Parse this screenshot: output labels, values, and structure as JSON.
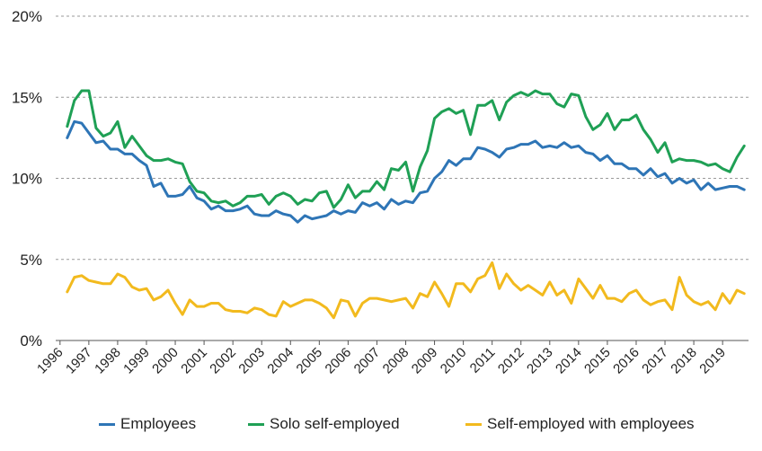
{
  "chart_data": {
    "type": "line",
    "ylim": [
      0,
      20
    ],
    "y_ticks": [
      "0%",
      "5%",
      "10%",
      "15%",
      "20%"
    ],
    "y_tick_values": [
      0,
      5,
      10,
      15,
      20
    ],
    "x_tick_labels": [
      "1996",
      "1997",
      "1998",
      "1999",
      "2000",
      "2001",
      "2002",
      "2003",
      "2004",
      "2005",
      "2006",
      "2007",
      "2008",
      "2009",
      "2010",
      "2011",
      "2012",
      "2013",
      "2014",
      "2015",
      "2016",
      "2017",
      "2018",
      "2019"
    ],
    "x_tick_values": [
      1996,
      1997,
      1998,
      1999,
      2000,
      2001,
      2002,
      2003,
      2004,
      2005,
      2006,
      2007,
      2008,
      2009,
      2010,
      2011,
      2012,
      2013,
      2014,
      2015,
      2016,
      2017,
      2018,
      2019
    ],
    "xlim": [
      1995.85,
      2019.9
    ],
    "grid": "horizontal-dashed",
    "legend_position": "bottom",
    "x": [
      1996.25,
      1996.5,
      1996.75,
      1997.0,
      1997.25,
      1997.5,
      1997.75,
      1998.0,
      1998.25,
      1998.5,
      1998.75,
      1999.0,
      1999.25,
      1999.5,
      1999.75,
      2000.0,
      2000.25,
      2000.5,
      2000.75,
      2001.0,
      2001.25,
      2001.5,
      2001.75,
      2002.0,
      2002.25,
      2002.5,
      2002.75,
      2003.0,
      2003.25,
      2003.5,
      2003.75,
      2004.0,
      2004.25,
      2004.5,
      2004.75,
      2005.0,
      2005.25,
      2005.5,
      2005.75,
      2006.0,
      2006.25,
      2006.5,
      2006.75,
      2007.0,
      2007.25,
      2007.5,
      2007.75,
      2008.0,
      2008.25,
      2008.5,
      2008.75,
      2009.0,
      2009.25,
      2009.5,
      2009.75,
      2010.0,
      2010.25,
      2010.5,
      2010.75,
      2011.0,
      2011.25,
      2011.5,
      2011.75,
      2012.0,
      2012.25,
      2012.5,
      2012.75,
      2013.0,
      2013.25,
      2013.5,
      2013.75,
      2014.0,
      2014.25,
      2014.5,
      2014.75,
      2015.0,
      2015.25,
      2015.5,
      2015.75,
      2016.0,
      2016.25,
      2016.5,
      2016.75,
      2017.0,
      2017.25,
      2017.5,
      2017.75,
      2018.0,
      2018.25,
      2018.5,
      2018.75,
      2019.0,
      2019.25,
      2019.5,
      2019.75
    ],
    "series": [
      {
        "name": "Employees",
        "color": "#2E75B6",
        "values": [
          12.5,
          13.5,
          13.4,
          12.8,
          12.2,
          12.3,
          11.8,
          11.8,
          11.5,
          11.5,
          11.1,
          10.8,
          9.5,
          9.7,
          8.9,
          8.9,
          9.0,
          9.5,
          8.8,
          8.6,
          8.1,
          8.3,
          8.0,
          8.0,
          8.1,
          8.3,
          7.8,
          7.7,
          7.7,
          8.0,
          7.8,
          7.7,
          7.3,
          7.7,
          7.5,
          7.6,
          7.7,
          8.0,
          7.8,
          8.0,
          7.9,
          8.5,
          8.3,
          8.5,
          8.1,
          8.7,
          8.4,
          8.6,
          8.5,
          9.1,
          9.2,
          10.0,
          10.4,
          11.1,
          10.8,
          11.2,
          11.2,
          11.9,
          11.8,
          11.6,
          11.3,
          11.8,
          11.9,
          12.1,
          12.1,
          12.3,
          11.9,
          12.0,
          11.9,
          12.2,
          11.9,
          12.0,
          11.6,
          11.5,
          11.1,
          11.4,
          10.9,
          10.9,
          10.6,
          10.6,
          10.2,
          10.6,
          10.1,
          10.3,
          9.7,
          10.0,
          9.7,
          9.9,
          9.3,
          9.7,
          9.3,
          9.4,
          9.5,
          9.5,
          9.3
        ]
      },
      {
        "name": "Solo self-employed",
        "color": "#1FA055",
        "values": [
          13.2,
          14.8,
          15.4,
          15.4,
          13.1,
          12.6,
          12.8,
          13.5,
          11.9,
          12.6,
          12.0,
          11.4,
          11.1,
          11.1,
          11.2,
          11.0,
          10.9,
          9.8,
          9.2,
          9.1,
          8.6,
          8.5,
          8.6,
          8.3,
          8.5,
          8.9,
          8.9,
          9.0,
          8.4,
          8.9,
          9.1,
          8.9,
          8.4,
          8.7,
          8.6,
          9.1,
          9.2,
          8.2,
          8.7,
          9.6,
          8.8,
          9.2,
          9.2,
          9.8,
          9.3,
          10.6,
          10.5,
          11.0,
          9.2,
          10.7,
          11.7,
          13.7,
          14.1,
          14.3,
          14.0,
          14.2,
          12.7,
          14.5,
          14.5,
          14.8,
          13.6,
          14.7,
          15.1,
          15.3,
          15.1,
          15.4,
          15.2,
          15.2,
          14.6,
          14.4,
          15.2,
          15.1,
          13.8,
          13.0,
          13.3,
          14.0,
          13.0,
          13.6,
          13.6,
          13.9,
          13.0,
          12.4,
          11.6,
          12.2,
          11.0,
          11.2,
          11.1,
          11.1,
          11.0,
          10.8,
          10.9,
          10.6,
          10.4,
          11.3,
          12.0
        ]
      },
      {
        "name": "Self-employed with employees",
        "color": "#F2BA1E",
        "values": [
          3.0,
          3.9,
          4.0,
          3.7,
          3.6,
          3.5,
          3.5,
          4.1,
          3.9,
          3.3,
          3.1,
          3.2,
          2.5,
          2.7,
          3.1,
          2.3,
          1.6,
          2.5,
          2.1,
          2.1,
          2.3,
          2.3,
          1.9,
          1.8,
          1.8,
          1.7,
          2.0,
          1.9,
          1.6,
          1.5,
          2.4,
          2.1,
          2.3,
          2.5,
          2.5,
          2.3,
          2.0,
          1.4,
          2.5,
          2.4,
          1.5,
          2.3,
          2.6,
          2.6,
          2.5,
          2.4,
          2.5,
          2.6,
          2.0,
          2.9,
          2.7,
          3.6,
          2.9,
          2.1,
          3.5,
          3.5,
          3.0,
          3.8,
          4.0,
          4.8,
          3.2,
          4.1,
          3.5,
          3.1,
          3.4,
          3.1,
          2.8,
          3.6,
          2.8,
          3.1,
          2.3,
          3.8,
          3.2,
          2.6,
          3.4,
          2.6,
          2.6,
          2.4,
          2.9,
          3.1,
          2.5,
          2.2,
          2.4,
          2.5,
          1.9,
          3.9,
          2.8,
          2.4,
          2.2,
          2.4,
          1.9,
          2.9,
          2.3,
          3.1,
          2.9
        ]
      }
    ]
  }
}
